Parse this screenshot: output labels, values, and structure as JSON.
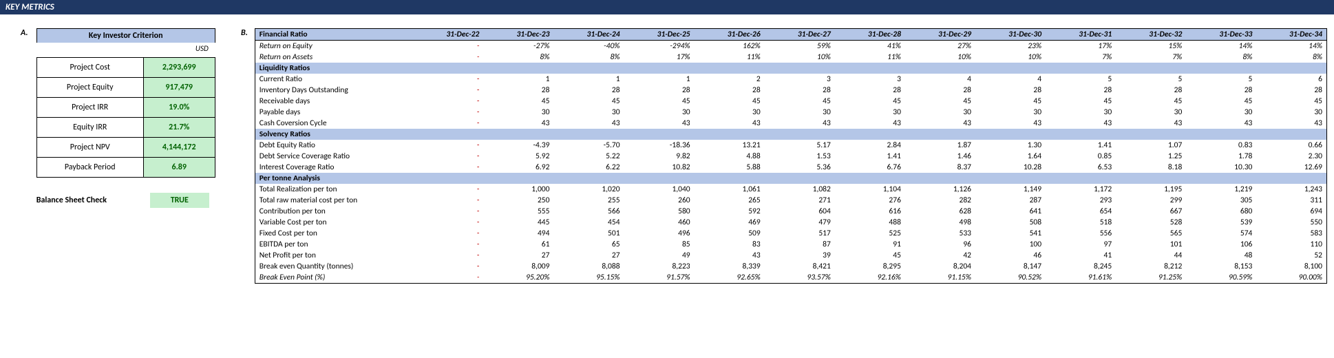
{
  "header": "KEY METRICS",
  "labelA": "A.",
  "labelB": "B.",
  "investor": {
    "title": "Key Investor Criterion",
    "currency": "USD",
    "rows": [
      {
        "label": "Project Cost",
        "value": "2,293,699"
      },
      {
        "label": "Project Equity",
        "value": "917,479"
      },
      {
        "label": "Project IRR",
        "value": "19.0%"
      },
      {
        "label": "Equity IRR",
        "value": "21.7%"
      },
      {
        "label": "Project NPV",
        "value": "4,144,172"
      },
      {
        "label": "Payback Period",
        "value": "6.89"
      }
    ],
    "balanceLabel": "Balance Sheet Check",
    "balanceValue": "TRUE"
  },
  "ratios": {
    "headerTitle": "Financial Ratio",
    "dates": [
      "31-Dec-22",
      "31-Dec-23",
      "31-Dec-24",
      "31-Dec-25",
      "31-Dec-26",
      "31-Dec-27",
      "31-Dec-28",
      "31-Dec-29",
      "31-Dec-30",
      "31-Dec-31",
      "31-Dec-32",
      "31-Dec-33",
      "31-Dec-34"
    ],
    "rows": [
      {
        "label": "Return on Equity",
        "italic": true,
        "vals": [
          "-",
          "-27%",
          "-40%",
          "-294%",
          "162%",
          "59%",
          "41%",
          "27%",
          "23%",
          "17%",
          "15%",
          "14%",
          "14%"
        ]
      },
      {
        "label": "Return on Assets",
        "italic": true,
        "vals": [
          "-",
          "8%",
          "8%",
          "17%",
          "11%",
          "10%",
          "11%",
          "10%",
          "10%",
          "7%",
          "7%",
          "8%",
          "8%"
        ]
      },
      {
        "section": "Liquidity Ratios"
      },
      {
        "label": "Current Ratio",
        "vals": [
          "-",
          "1",
          "1",
          "1",
          "2",
          "3",
          "3",
          "4",
          "4",
          "5",
          "5",
          "5",
          "6"
        ]
      },
      {
        "label": "Inventory Days Outstanding",
        "vals": [
          "-",
          "28",
          "28",
          "28",
          "28",
          "28",
          "28",
          "28",
          "28",
          "28",
          "28",
          "28",
          "28"
        ]
      },
      {
        "label": "Receivable days",
        "vals": [
          "-",
          "45",
          "45",
          "45",
          "45",
          "45",
          "45",
          "45",
          "45",
          "45",
          "45",
          "45",
          "45"
        ]
      },
      {
        "label": "Payable days",
        "vals": [
          "-",
          "30",
          "30",
          "30",
          "30",
          "30",
          "30",
          "30",
          "30",
          "30",
          "30",
          "30",
          "30"
        ]
      },
      {
        "label": "Cash Coversion Cycle",
        "vals": [
          "-",
          "43",
          "43",
          "43",
          "43",
          "43",
          "43",
          "43",
          "43",
          "43",
          "43",
          "43",
          "43"
        ]
      },
      {
        "section": "Solvency Ratios"
      },
      {
        "label": "Debt Equity Ratio",
        "vals": [
          "-",
          "-4.39",
          "-5.70",
          "-18.36",
          "13.21",
          "5.17",
          "2.84",
          "1.87",
          "1.30",
          "1.41",
          "1.07",
          "0.83",
          "0.66"
        ]
      },
      {
        "label": "Debt Service Coverage Ratio",
        "vals": [
          "-",
          "5.92",
          "5.22",
          "9.82",
          "4.88",
          "1.53",
          "1.41",
          "1.46",
          "1.64",
          "0.85",
          "1.25",
          "1.78",
          "2.30"
        ]
      },
      {
        "label": "Interest Coverage Ratio",
        "vals": [
          "-",
          "6.92",
          "6.22",
          "10.82",
          "5.88",
          "5.36",
          "6.76",
          "8.37",
          "10.28",
          "6.53",
          "8.18",
          "10.30",
          "12.69"
        ]
      },
      {
        "section": "Per tonne Analysis"
      },
      {
        "label": "Total Realization per ton",
        "vals": [
          "-",
          "1,000",
          "1,020",
          "1,040",
          "1,061",
          "1,082",
          "1,104",
          "1,126",
          "1,149",
          "1,172",
          "1,195",
          "1,219",
          "1,243"
        ]
      },
      {
        "label": "Total raw material cost per ton",
        "vals": [
          "-",
          "250",
          "255",
          "260",
          "265",
          "271",
          "276",
          "282",
          "287",
          "293",
          "299",
          "305",
          "311"
        ]
      },
      {
        "label": "Contribution per ton",
        "vals": [
          "-",
          "555",
          "566",
          "580",
          "592",
          "604",
          "616",
          "628",
          "641",
          "654",
          "667",
          "680",
          "694"
        ]
      },
      {
        "label": "Variable Cost per ton",
        "vals": [
          "-",
          "445",
          "454",
          "460",
          "469",
          "479",
          "488",
          "498",
          "508",
          "518",
          "528",
          "539",
          "550"
        ]
      },
      {
        "label": "Fixed Cost per ton",
        "vals": [
          "-",
          "494",
          "501",
          "496",
          "509",
          "517",
          "525",
          "533",
          "541",
          "556",
          "565",
          "574",
          "583"
        ]
      },
      {
        "label": "EBITDA per ton",
        "vals": [
          "-",
          "61",
          "65",
          "85",
          "83",
          "87",
          "91",
          "96",
          "100",
          "97",
          "101",
          "106",
          "110"
        ]
      },
      {
        "label": "Net Profit per ton",
        "vals": [
          "-",
          "27",
          "27",
          "49",
          "43",
          "39",
          "45",
          "42",
          "46",
          "41",
          "44",
          "48",
          "52"
        ]
      },
      {
        "label": "Break even Quantity (tonnes)",
        "vals": [
          "-",
          "8,009",
          "8,088",
          "8,223",
          "8,339",
          "8,421",
          "8,295",
          "8,204",
          "8,147",
          "8,245",
          "8,212",
          "8,153",
          "8,100"
        ]
      },
      {
        "label": "Break Even Point (%)",
        "italic": true,
        "last": true,
        "vals": [
          "-",
          "95.20%",
          "95.15%",
          "91.57%",
          "92.65%",
          "93.57%",
          "92.16%",
          "91.15%",
          "90.52%",
          "91.61%",
          "91.25%",
          "90.59%",
          "90.00%"
        ]
      }
    ]
  },
  "style": {
    "headerBg": "#1f3864",
    "sectionBg": "#b4c6e7",
    "goodBg": "#c6efce",
    "goodText": "#006100",
    "dashColor": "#c00000"
  }
}
